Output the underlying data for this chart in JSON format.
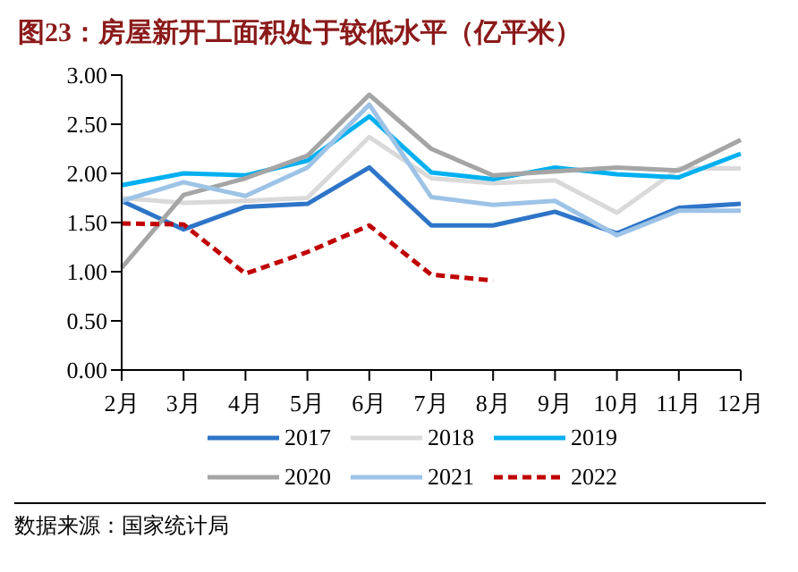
{
  "chart_data": {
    "type": "line",
    "title": "图23：房屋新开工面积处于较低水平（亿平米）",
    "annotations": [
      "数据来源：国家统计局"
    ],
    "categories": [
      "2月",
      "3月",
      "4月",
      "5月",
      "6月",
      "7月",
      "8月",
      "9月",
      "10月",
      "11月",
      "12月"
    ],
    "series": [
      {
        "name": "2017",
        "color": "#2e75c8",
        "values": [
          1.72,
          1.43,
          1.66,
          1.69,
          2.06,
          1.47,
          1.47,
          1.61,
          1.39,
          1.65,
          1.69
        ]
      },
      {
        "name": "2018",
        "color": "#d9d9d9",
        "values": [
          1.75,
          1.7,
          1.72,
          1.75,
          2.37,
          1.95,
          1.9,
          1.93,
          1.6,
          2.05,
          2.05
        ]
      },
      {
        "name": "2019",
        "color": "#00b0f0",
        "values": [
          1.88,
          2.0,
          1.98,
          2.13,
          2.58,
          2.01,
          1.94,
          2.06,
          1.99,
          1.96,
          2.2
        ]
      },
      {
        "name": "2020",
        "color": "#a5a5a5",
        "values": [
          1.04,
          1.78,
          1.95,
          2.18,
          2.8,
          2.25,
          1.98,
          2.02,
          2.06,
          2.03,
          2.34
        ]
      },
      {
        "name": "2021",
        "color": "#9dc3e6",
        "values": [
          1.72,
          1.91,
          1.77,
          2.06,
          2.7,
          1.76,
          1.68,
          1.72,
          1.37,
          1.62,
          1.62
        ]
      },
      {
        "name": "2022",
        "color": "#c00000",
        "line_style": "dashed",
        "values": [
          1.49,
          1.48,
          0.98,
          1.2,
          1.47,
          0.97,
          0.91,
          null,
          null,
          null,
          null
        ]
      }
    ],
    "ylim": [
      0,
      3
    ],
    "yticks": [
      {
        "value": 0,
        "label": "0.00"
      },
      {
        "value": 0.5,
        "label": "0.50"
      },
      {
        "value": 1,
        "label": "1.00"
      },
      {
        "value": 1.5,
        "label": "1.50"
      },
      {
        "value": 2,
        "label": "2.00"
      },
      {
        "value": 2.5,
        "label": "2.50"
      },
      {
        "value": 3,
        "label": "3.00"
      }
    ],
    "grid": false,
    "legend": "bottom",
    "marker": "none"
  }
}
